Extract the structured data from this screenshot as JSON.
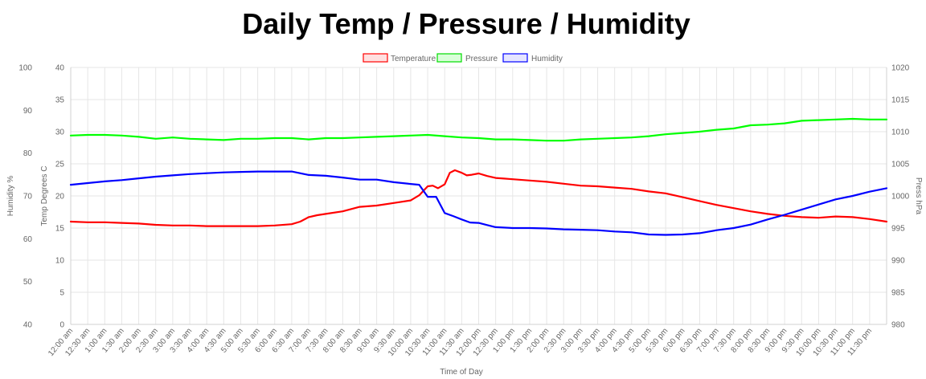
{
  "chart_data": {
    "type": "line",
    "title": "Daily Temp / Pressure / Humidity",
    "xlabel": "Time of Day",
    "ylabel_left_outer": "Humidity %",
    "ylabel_left_inner": "Temp Degrees C",
    "ylabel_right": "Press hPa",
    "legend_position": "top-center",
    "grid": true,
    "x_ticks": [
      "12:00 am",
      "12:30 am",
      "1:00 am",
      "1:30 am",
      "2:00 am",
      "2:30 am",
      "3:00 am",
      "3:30 am",
      "4:00 am",
      "4:30 am",
      "5:00 am",
      "5:30 am",
      "6:00 am",
      "6:30 am",
      "7:00 am",
      "7:30 am",
      "8:00 am",
      "8:30 am",
      "9:00 am",
      "9:30 am",
      "10:00 am",
      "10:30 am",
      "11:00 am",
      "11:30 am",
      "12:00 pm",
      "12:30 pm",
      "1:00 pm",
      "1:30 pm",
      "2:00 pm",
      "2:30 pm",
      "3:00 pm",
      "3:30 pm",
      "4:00 pm",
      "4:30 pm",
      "5:00 pm",
      "5:30 pm",
      "6:00 pm",
      "6:30 pm",
      "7:00 pm",
      "7:30 pm",
      "8:00 pm",
      "8:30 pm",
      "9:00 pm",
      "9:30 pm",
      "10:00 pm",
      "10:30 pm",
      "11:00 pm",
      "11:30 pm"
    ],
    "axes": {
      "humidity": {
        "min": 40,
        "max": 100,
        "ticks": [
          "40",
          "50",
          "60",
          "70",
          "80",
          "90",
          "100"
        ]
      },
      "temperature": {
        "min": 0,
        "max": 40,
        "ticks": [
          "0",
          "5",
          "10",
          "15",
          "20",
          "25",
          "30",
          "35",
          "40"
        ]
      },
      "pressure": {
        "min": 980,
        "max": 1020,
        "ticks": [
          "980",
          "985",
          "990",
          "995",
          "1000",
          "1005",
          "1010",
          "1015",
          "1020"
        ]
      }
    },
    "series": [
      {
        "name": "Temperature",
        "axis": "temperature",
        "color": "#ff0000",
        "x": [
          0,
          1,
          2,
          3,
          4,
          5,
          6,
          7,
          8,
          9,
          10,
          11,
          12,
          13,
          13.5,
          14,
          14.5,
          15,
          16,
          17,
          18,
          19,
          20,
          20.5,
          21,
          21.3,
          21.6,
          22,
          22.3,
          22.6,
          23,
          23.3,
          23.6,
          24,
          24.5,
          25,
          25.5,
          26,
          27,
          28,
          29,
          30,
          31,
          32,
          33,
          34,
          35,
          36,
          37,
          38,
          39,
          40,
          41,
          42,
          43,
          44,
          45,
          46,
          47,
          48
        ],
        "values": [
          16.0,
          15.9,
          15.9,
          15.8,
          15.7,
          15.5,
          15.4,
          15.4,
          15.3,
          15.3,
          15.3,
          15.3,
          15.4,
          15.6,
          16.0,
          16.7,
          17.0,
          17.2,
          17.6,
          18.3,
          18.5,
          18.9,
          19.3,
          20.1,
          21.5,
          21.6,
          21.2,
          21.8,
          23.6,
          24.0,
          23.6,
          23.2,
          23.3,
          23.5,
          23.1,
          22.8,
          22.7,
          22.6,
          22.4,
          22.2,
          21.9,
          21.6,
          21.5,
          21.3,
          21.1,
          20.7,
          20.4,
          19.8,
          19.2,
          18.6,
          18.1,
          17.6,
          17.2,
          16.9,
          16.7,
          16.6,
          16.8,
          16.7,
          16.4,
          16.0
        ]
      },
      {
        "name": "Pressure",
        "axis": "pressure",
        "color": "#00ff00",
        "x": [
          0,
          1,
          2,
          3,
          4,
          5,
          6,
          7,
          8,
          9,
          10,
          11,
          12,
          13,
          14,
          15,
          16,
          17,
          18,
          19,
          20,
          21,
          22,
          23,
          24,
          25,
          26,
          27,
          28,
          29,
          30,
          31,
          32,
          33,
          34,
          35,
          36,
          37,
          38,
          39,
          40,
          41,
          42,
          43,
          44,
          45,
          46,
          47,
          48
        ],
        "values": [
          1009.4,
          1009.5,
          1009.5,
          1009.4,
          1009.2,
          1008.9,
          1009.1,
          1008.9,
          1008.8,
          1008.7,
          1008.9,
          1008.9,
          1009.0,
          1009.0,
          1008.8,
          1009.0,
          1009.0,
          1009.1,
          1009.2,
          1009.3,
          1009.4,
          1009.5,
          1009.3,
          1009.1,
          1009.0,
          1008.8,
          1008.8,
          1008.7,
          1008.6,
          1008.6,
          1008.8,
          1008.9,
          1009.0,
          1009.1,
          1009.3,
          1009.6,
          1009.8,
          1010.0,
          1010.3,
          1010.5,
          1011.0,
          1011.1,
          1011.3,
          1011.7,
          1011.8,
          1011.9,
          1012.0,
          1011.9,
          1011.9
        ]
      },
      {
        "name": "Humidity",
        "axis": "humidity",
        "color": "#0000ff",
        "x": [
          0,
          1,
          2,
          3,
          4,
          5,
          6,
          7,
          8,
          9,
          10,
          11,
          12,
          13,
          14,
          15,
          16,
          17,
          18,
          19,
          20,
          20.5,
          21,
          21.5,
          22,
          22.5,
          23,
          23.5,
          24,
          24.5,
          25,
          26,
          27,
          28,
          29,
          30,
          31,
          32,
          33,
          34,
          35,
          36,
          37,
          38,
          39,
          40,
          41,
          42,
          43,
          44,
          45,
          46,
          47,
          48
        ],
        "values": [
          72.6,
          73.0,
          73.4,
          73.7,
          74.1,
          74.5,
          74.8,
          75.1,
          75.3,
          75.5,
          75.6,
          75.7,
          75.7,
          75.7,
          74.9,
          74.7,
          74.3,
          73.8,
          73.8,
          73.2,
          72.8,
          72.6,
          69.8,
          69.8,
          66.0,
          65.3,
          64.5,
          63.8,
          63.7,
          63.2,
          62.7,
          62.5,
          62.5,
          62.4,
          62.2,
          62.1,
          62.0,
          61.7,
          61.5,
          61.0,
          60.9,
          61.0,
          61.3,
          62.0,
          62.5,
          63.3,
          64.5,
          65.6,
          66.8,
          68.0,
          69.2,
          70.0,
          71.0,
          71.8
        ]
      }
    ]
  }
}
